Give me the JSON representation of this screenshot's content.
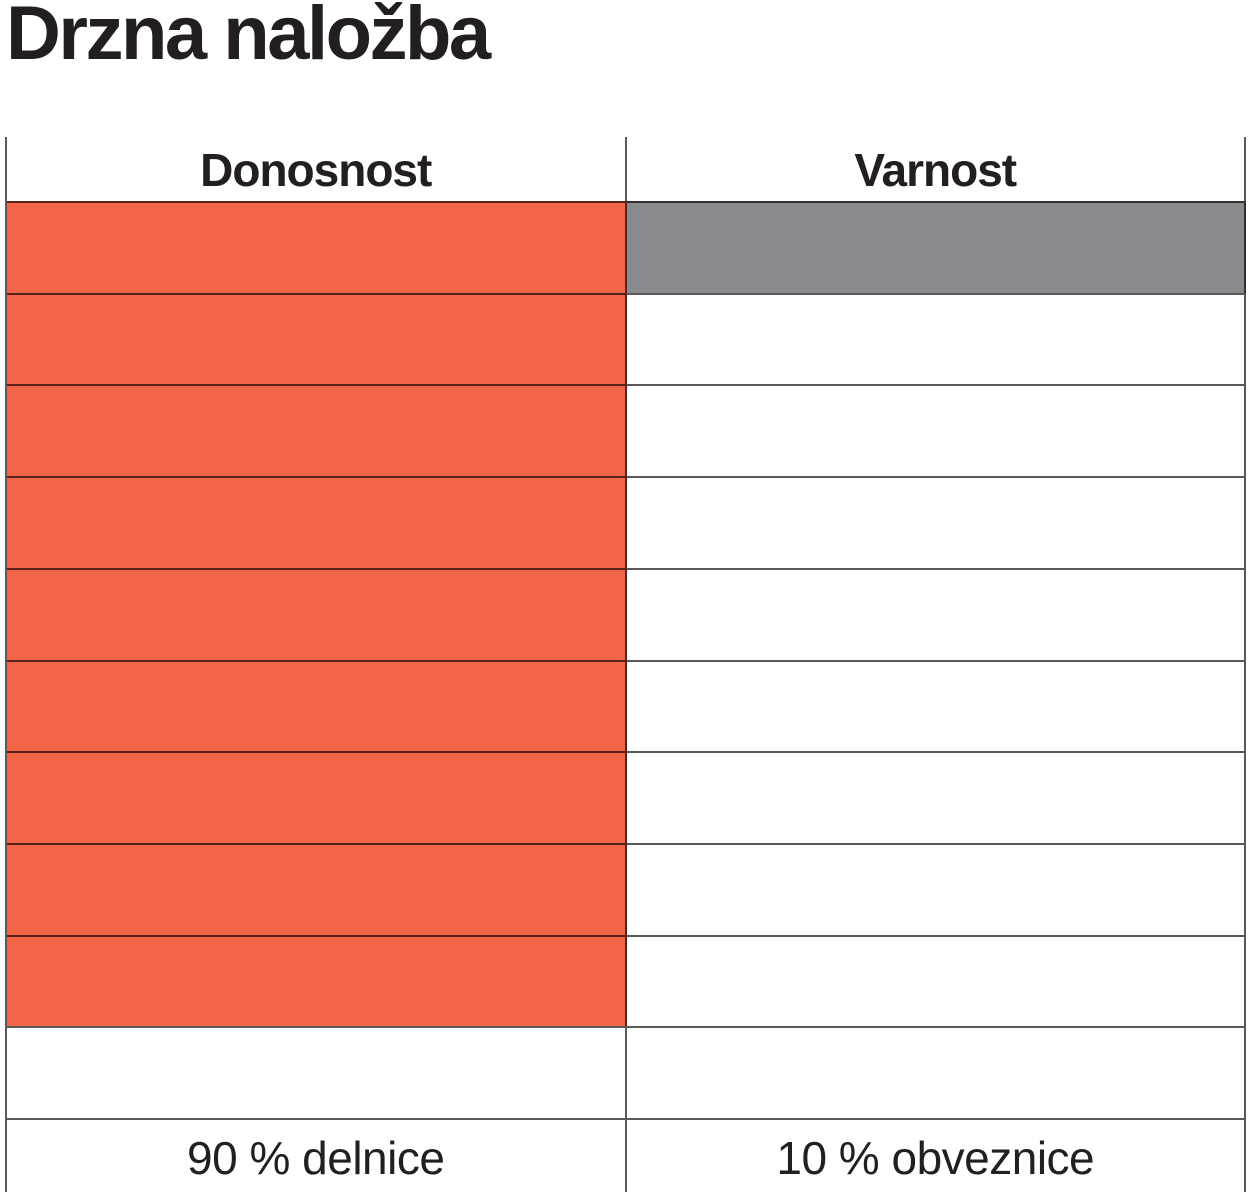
{
  "title": "Drzna naložba",
  "chart_data": {
    "type": "table",
    "subtype": "filled-cell-pictograph-scale",
    "unit_rows": 10,
    "fill_direction": "top",
    "grid_line_color": "#4D4D4D",
    "text_color": "#231F20",
    "background_color": "#FFFFFF",
    "columns": [
      {
        "header": "Donosnost",
        "filled_cells": 9,
        "total_cells": 10,
        "value_percent": 90,
        "fill_color": "#F26549",
        "footer_label": "90 % delnice"
      },
      {
        "header": "Varnost",
        "filled_cells": 1,
        "total_cells": 10,
        "value_percent": 10,
        "fill_color": "#898A8D",
        "footer_label": "10 % obveznice"
      }
    ]
  }
}
